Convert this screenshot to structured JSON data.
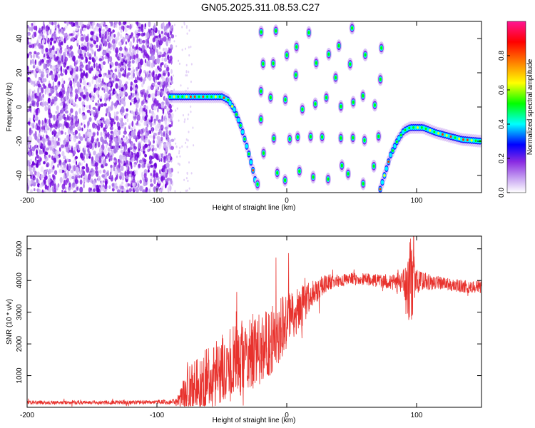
{
  "title": "GN05.2025.311.08.53.C27",
  "chart_data": [
    {
      "type": "heatmap",
      "title": "GN05.2025.311.08.53.C27",
      "xlabel": "Height of straight line (km)",
      "ylabel": "Frequency (Hz)",
      "xlim": [
        -200,
        150
      ],
      "ylim": [
        -50,
        50
      ],
      "xticks": [
        -200,
        -100,
        0,
        100
      ],
      "xtick_labels": [
        "-200",
        "-100",
        "0",
        "100"
      ],
      "yticks": [
        -40,
        -20,
        0,
        20,
        40
      ],
      "ytick_labels": [
        "-40",
        "-20",
        "0",
        "20",
        "40"
      ],
      "colorbar": {
        "label": "Normalized spectral amplitude",
        "range": [
          0,
          1
        ],
        "ticks": [
          0.0,
          0.2,
          0.4,
          0.6,
          0.8
        ],
        "tick_labels": [
          "0.0",
          "0.2",
          "0.4",
          "0.6",
          "0.8"
        ],
        "colormap": [
          "#ffffff",
          "#8a2be2",
          "#0000ff",
          "#00ffff",
          "#00ff00",
          "#ffff00",
          "#ff7f00",
          "#ff0000",
          "#ff1493"
        ]
      },
      "features": {
        "noise_region_x": [
          -200,
          -88
        ],
        "left_ridge": [
          [
            -90,
            6
          ],
          [
            -80,
            6
          ],
          [
            -70,
            6
          ],
          [
            -60,
            6
          ],
          [
            -50,
            6
          ],
          [
            -45,
            4
          ],
          [
            -40,
            -2
          ],
          [
            -35,
            -12
          ],
          [
            -30,
            -25
          ],
          [
            -25,
            -40
          ],
          [
            -23,
            -48
          ]
        ],
        "right_ridge": [
          [
            72,
            -48
          ],
          [
            76,
            -38
          ],
          [
            80,
            -28
          ],
          [
            85,
            -20
          ],
          [
            90,
            -14
          ],
          [
            95,
            -12
          ],
          [
            105,
            -12
          ],
          [
            115,
            -15
          ],
          [
            125,
            -17
          ],
          [
            135,
            -19
          ],
          [
            150,
            -20
          ]
        ],
        "blob_columns_x": [
          -20,
          -10,
          0,
          10,
          20,
          30,
          40,
          50,
          60,
          70
        ]
      }
    },
    {
      "type": "line",
      "xlabel": "Height of straight line (km)",
      "ylabel": "SNR (10 * v/v)",
      "xlim": [
        -200,
        150
      ],
      "ylim": [
        0,
        5400
      ],
      "xticks": [
        -200,
        -100,
        0,
        100
      ],
      "xtick_labels": [
        "-200",
        "-100",
        "0",
        "100"
      ],
      "yticks": [
        1000,
        2000,
        3000,
        4000,
        5000
      ],
      "ytick_labels": [
        "1000",
        "2000",
        "3000",
        "4000",
        "5000"
      ],
      "line_color": "#e8322d",
      "series": [
        {
          "name": "SNR",
          "x": [
            -200,
            -150,
            -100,
            -85,
            -80,
            -75,
            -70,
            -60,
            -50,
            -40,
            -30,
            -20,
            -10,
            0,
            10,
            20,
            30,
            40,
            50,
            60,
            70,
            80,
            90,
            95,
            100,
            110,
            120,
            130,
            140,
            150
          ],
          "values": [
            150,
            150,
            160,
            180,
            350,
            500,
            700,
            900,
            1200,
            1400,
            1700,
            1900,
            2200,
            2700,
            3100,
            3600,
            3900,
            4000,
            4050,
            4050,
            4000,
            3950,
            3950,
            3900,
            4000,
            3950,
            3900,
            3850,
            3800,
            3800
          ],
          "noise_amplitude": [
            60,
            60,
            70,
            90,
            500,
            800,
            900,
            1000,
            1100,
            1200,
            1200,
            1200,
            1100,
            900,
            700,
            400,
            300,
            200,
            200,
            200,
            200,
            250,
            400,
            1500,
            400,
            250,
            200,
            200,
            200,
            200
          ]
        }
      ]
    }
  ]
}
